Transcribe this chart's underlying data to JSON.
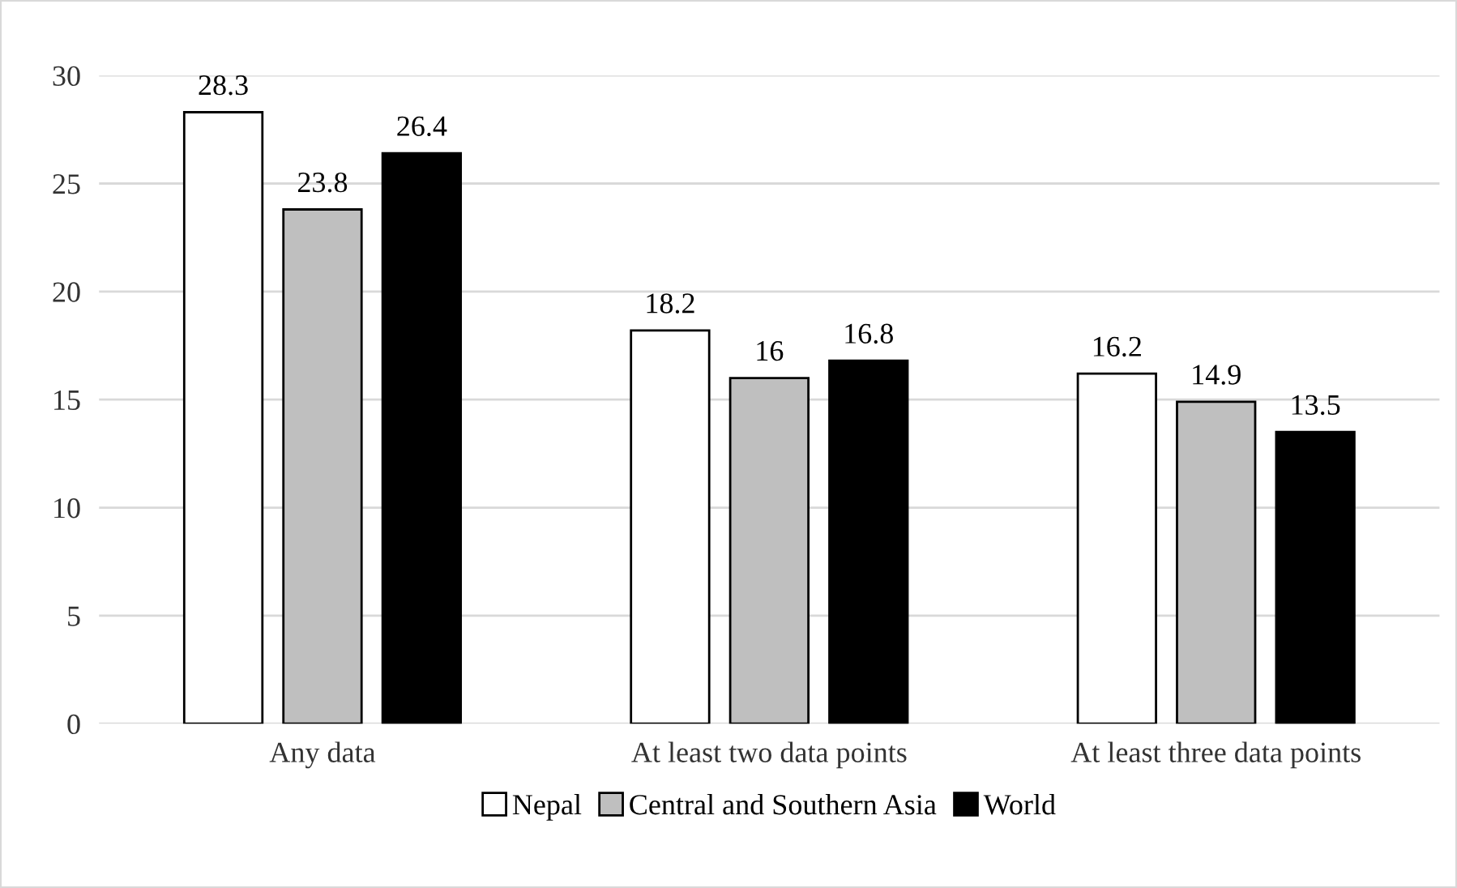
{
  "chart_data": {
    "type": "bar",
    "categories": [
      "Any data",
      "At least two data points",
      "At least three data points"
    ],
    "series": [
      {
        "name": "Nepal",
        "color": "#ffffff",
        "values": [
          28.3,
          18.2,
          16.2
        ]
      },
      {
        "name": "Central and Southern Asia",
        "color": "#bfbfbf",
        "values": [
          23.8,
          16,
          14.9
        ]
      },
      {
        "name": "World",
        "color": "#000000",
        "values": [
          26.4,
          16.8,
          13.5
        ]
      }
    ],
    "ylim": [
      0,
      30
    ],
    "yticks": [
      0,
      5,
      10,
      15,
      20,
      25,
      30
    ],
    "grid": "y",
    "legend": "bottom",
    "data_labels": true
  }
}
